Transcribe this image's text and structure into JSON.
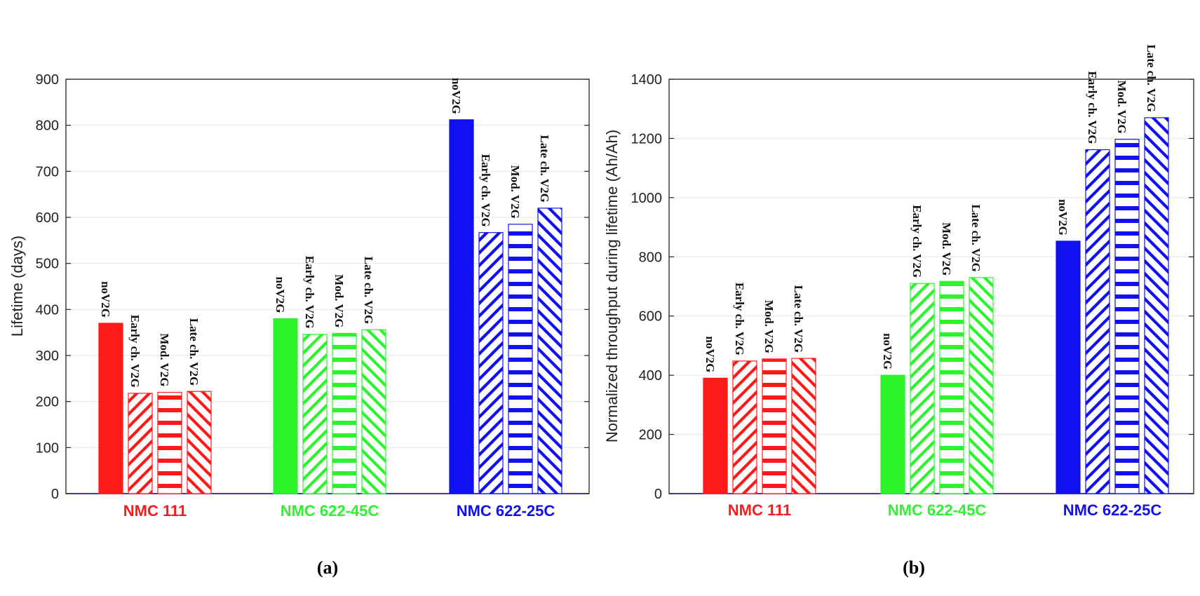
{
  "chart_data": [
    {
      "type": "bar",
      "panel": "(a)",
      "ylabel": "Lifetime (days)",
      "ylim": [
        0,
        900
      ],
      "yticks": [
        0,
        100,
        200,
        300,
        400,
        500,
        600,
        700,
        800,
        900
      ],
      "ytick_labels": [
        "0",
        "100",
        "200",
        "300",
        "400",
        "500",
        "600",
        "700",
        "800",
        "900"
      ],
      "grid": true,
      "groups": [
        {
          "name": "NMC 111",
          "color": "#ff1a1a",
          "bars": [
            {
              "label": "noV2G",
              "value": 370,
              "pattern": "solid"
            },
            {
              "label": "Early ch. V2G",
              "value": 218,
              "pattern": "diag-up"
            },
            {
              "label": "Mod. V2G",
              "value": 220,
              "pattern": "horizontal"
            },
            {
              "label": "Late ch. V2G",
              "value": 222,
              "pattern": "diag-down"
            }
          ]
        },
        {
          "name": "NMC 622-45C",
          "color": "#2cf52c",
          "bars": [
            {
              "label": "noV2G",
              "value": 380,
              "pattern": "solid"
            },
            {
              "label": "Early ch. V2G",
              "value": 346,
              "pattern": "diag-up"
            },
            {
              "label": "Mod. V2G",
              "value": 348,
              "pattern": "horizontal"
            },
            {
              "label": "Late ch. V2G",
              "value": 356,
              "pattern": "diag-down"
            }
          ]
        },
        {
          "name": "NMC 622-25C",
          "color": "#1010f0",
          "bars": [
            {
              "label": "noV2G",
              "value": 812,
              "pattern": "solid"
            },
            {
              "label": "Early ch. V2G",
              "value": 567,
              "pattern": "diag-up"
            },
            {
              "label": "Mod. V2G",
              "value": 585,
              "pattern": "horizontal"
            },
            {
              "label": "Late ch. V2G",
              "value": 620,
              "pattern": "diag-down"
            }
          ]
        }
      ]
    },
    {
      "type": "bar",
      "panel": "(b)",
      "ylabel": "Normalized throughput during lifetime (Ah/Ah)",
      "ylim": [
        0,
        1400
      ],
      "yticks": [
        0,
        200,
        400,
        600,
        800,
        1000,
        1200,
        1400
      ],
      "ytick_labels": [
        "0",
        "200",
        "400",
        "600",
        "800",
        "1000",
        "1200",
        "1400"
      ],
      "grid": true,
      "groups": [
        {
          "name": "NMC 111",
          "color": "#ff1a1a",
          "bars": [
            {
              "label": "noV2G",
              "value": 390,
              "pattern": "solid"
            },
            {
              "label": "Early ch. V2G",
              "value": 448,
              "pattern": "diag-up"
            },
            {
              "label": "Mod. V2G",
              "value": 455,
              "pattern": "horizontal"
            },
            {
              "label": "Late ch. V2G",
              "value": 457,
              "pattern": "diag-down"
            }
          ]
        },
        {
          "name": "NMC 622-45C",
          "color": "#2cf52c",
          "bars": [
            {
              "label": "noV2G",
              "value": 400,
              "pattern": "solid"
            },
            {
              "label": "Early ch. V2G",
              "value": 710,
              "pattern": "diag-up"
            },
            {
              "label": "Mod. V2G",
              "value": 717,
              "pattern": "horizontal"
            },
            {
              "label": "Late ch. V2G",
              "value": 730,
              "pattern": "diag-down"
            }
          ]
        },
        {
          "name": "NMC 622-25C",
          "color": "#1010f0",
          "bars": [
            {
              "label": "noV2G",
              "value": 853,
              "pattern": "solid"
            },
            {
              "label": "Early ch. V2G",
              "value": 1162,
              "pattern": "diag-up"
            },
            {
              "label": "Mod. V2G",
              "value": 1197,
              "pattern": "horizontal"
            },
            {
              "label": "Late ch. V2G",
              "value": 1270,
              "pattern": "diag-down"
            }
          ]
        }
      ]
    }
  ]
}
